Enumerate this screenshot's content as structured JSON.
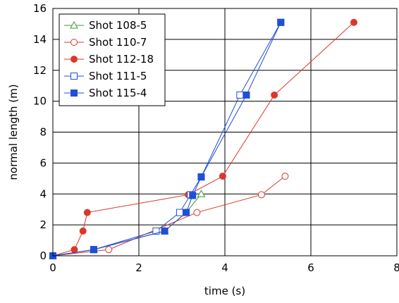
{
  "chart_data": {
    "type": "line",
    "title": "",
    "xlabel": "time (s)",
    "ylabel": "normal length (m)",
    "xlim": [
      0,
      8
    ],
    "ylim": [
      0,
      16
    ],
    "x_ticks": [
      0,
      2,
      4,
      6,
      8
    ],
    "y_ticks": [
      0,
      2,
      4,
      6,
      8,
      10,
      12,
      14,
      16
    ],
    "grid": true,
    "legend_position": "top-left",
    "series": [
      {
        "name": "Shot 108-5",
        "color": "#3a9a3a",
        "marker": "open-triangle",
        "points": [
          [
            0,
            0
          ],
          [
            0.95,
            0.4
          ],
          [
            2.6,
            1.6
          ],
          [
            3.1,
            2.8
          ],
          [
            3.45,
            4.0
          ]
        ]
      },
      {
        "name": "Shot 110-7",
        "color": "#d9382a",
        "marker": "open-circle",
        "points": [
          [
            0,
            0
          ],
          [
            1.3,
            0.4
          ],
          [
            3.35,
            2.8
          ],
          [
            4.85,
            3.95
          ],
          [
            5.4,
            5.15
          ]
        ]
      },
      {
        "name": "Shot 112-18",
        "color": "#d9382a",
        "marker": "filled-circle",
        "points": [
          [
            0,
            0
          ],
          [
            0.5,
            0.4
          ],
          [
            0.7,
            1.6
          ],
          [
            0.8,
            2.8
          ],
          [
            3.15,
            3.95
          ],
          [
            3.95,
            5.15
          ],
          [
            5.15,
            10.4
          ],
          [
            7.0,
            15.1
          ]
        ]
      },
      {
        "name": "Shot 111-5",
        "color": "#1f4fd8",
        "marker": "open-square",
        "points": [
          [
            0,
            0
          ],
          [
            0.95,
            0.4
          ],
          [
            2.4,
            1.6
          ],
          [
            2.95,
            2.8
          ],
          [
            3.2,
            3.95
          ],
          [
            3.45,
            5.1
          ],
          [
            4.35,
            10.4
          ],
          [
            5.3,
            15.1
          ]
        ]
      },
      {
        "name": "Shot 115-4",
        "color": "#1f4fd8",
        "marker": "filled-square",
        "points": [
          [
            0,
            0
          ],
          [
            0.95,
            0.4
          ],
          [
            2.6,
            1.6
          ],
          [
            3.1,
            2.8
          ],
          [
            3.25,
            3.9
          ],
          [
            3.45,
            5.1
          ],
          [
            4.5,
            10.4
          ],
          [
            5.3,
            15.1
          ]
        ]
      }
    ]
  }
}
